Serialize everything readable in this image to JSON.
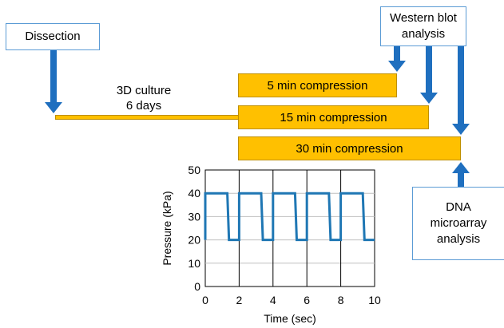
{
  "boxes": {
    "dissection": "Dissection",
    "western_blot": [
      "Western blot",
      "analysis"
    ],
    "dna_microarray": [
      "DNA",
      "microarray",
      "analysis"
    ]
  },
  "culture_label": [
    "3D culture",
    "6 days"
  ],
  "compressions": [
    "5 min compression",
    "15 min compression",
    "30 min compression"
  ],
  "colors": {
    "bar_fill": "#ffc000",
    "arrow": "#1f6fbf",
    "box_border": "#5b9bd5",
    "line": "#1f77b4"
  },
  "chart_data": {
    "type": "line",
    "xlabel": "Time (sec)",
    "ylabel": "Pressure (kPa)",
    "xlim": [
      0,
      10
    ],
    "ylim": [
      0,
      50
    ],
    "xticks": [
      0,
      2,
      4,
      6,
      8,
      10
    ],
    "yticks": [
      0,
      10,
      20,
      30,
      40,
      50
    ],
    "grid": true,
    "series": [
      {
        "x": [
          0,
          0,
          1.3,
          1.4,
          2.0,
          2.0,
          3.3,
          3.4,
          4.0,
          4.0,
          5.3,
          5.4,
          6.0,
          6.0,
          7.3,
          7.4,
          8.0,
          8.0,
          9.3,
          9.4,
          10.0
        ],
        "y": [
          20,
          40,
          40,
          20,
          20,
          40,
          40,
          20,
          20,
          40,
          40,
          20,
          20,
          40,
          40,
          20,
          20,
          40,
          40,
          20,
          20
        ]
      }
    ]
  }
}
